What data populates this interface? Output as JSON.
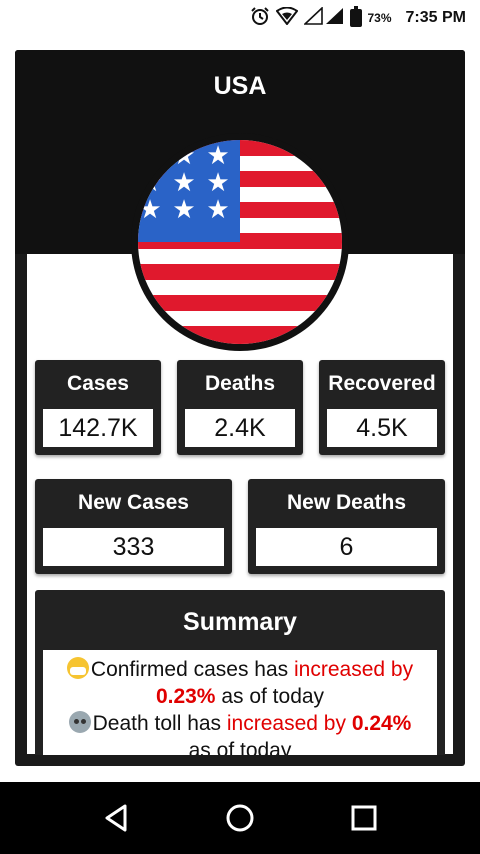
{
  "status_bar": {
    "battery_percent": "73%",
    "time": "7:35 PM",
    "icons": [
      "alarm-icon",
      "wifi-icon",
      "signal-icon",
      "battery-icon"
    ]
  },
  "country": {
    "name": "USA",
    "flag_icon": "usa-flag-icon"
  },
  "stats": {
    "cases": {
      "label": "Cases",
      "value": "142.7K"
    },
    "deaths": {
      "label": "Deaths",
      "value": "2.4K"
    },
    "recovered": {
      "label": "Recovered",
      "value": "4.5K"
    },
    "new_cases": {
      "label": "New Cases",
      "value": "333"
    },
    "new_deaths": {
      "label": "New Deaths",
      "value": "6"
    }
  },
  "summary": {
    "title": "Summary",
    "confirmed_prefix": "Confirmed cases has ",
    "confirmed_change": "increased by",
    "confirmed_pct": "0.23%",
    "confirmed_suffix": " as of today",
    "death_prefix": "Death toll has ",
    "death_change": "increased by",
    "death_pct": "0.24%",
    "death_suffix": "as of today"
  },
  "colors": {
    "card_dark": "#111111",
    "box_dark": "#222222",
    "highlight_red": "#e00000",
    "flag_red": "#e0192d",
    "flag_blue": "#2a63c7"
  }
}
